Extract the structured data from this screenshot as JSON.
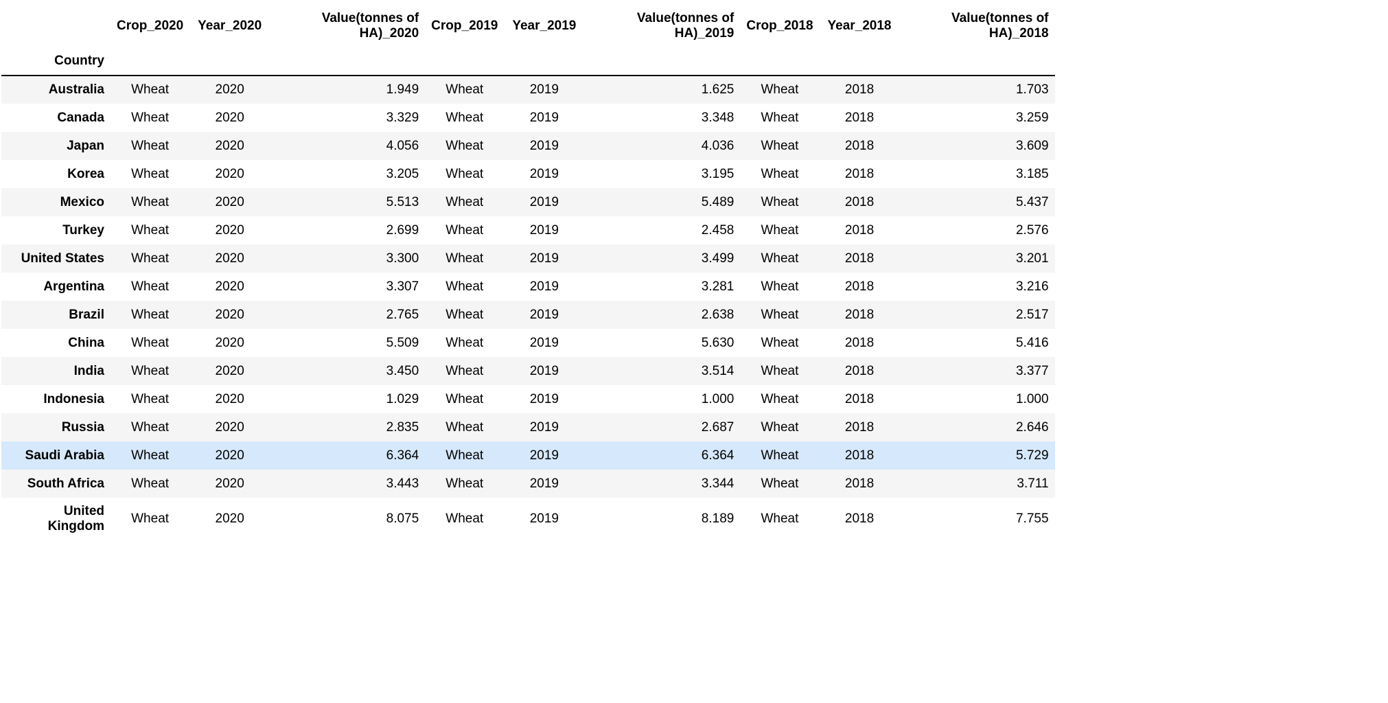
{
  "table": {
    "columns": [
      "Crop_2020",
      "Year_2020",
      "Value(tonnes of HA)_2020",
      "Crop_2019",
      "Year_2019",
      "Value(tonnes of HA)_2019",
      "Crop_2018",
      "Year_2018",
      "Value(tonnes of HA)_2018"
    ],
    "index_name": "Country",
    "hovered_row": "Saudi Arabia",
    "rows": [
      {
        "country": "Australia",
        "cells": [
          "Wheat",
          "2020",
          "1.949",
          "Wheat",
          "2019",
          "1.625",
          "Wheat",
          "2018",
          "1.703"
        ]
      },
      {
        "country": "Canada",
        "cells": [
          "Wheat",
          "2020",
          "3.329",
          "Wheat",
          "2019",
          "3.348",
          "Wheat",
          "2018",
          "3.259"
        ]
      },
      {
        "country": "Japan",
        "cells": [
          "Wheat",
          "2020",
          "4.056",
          "Wheat",
          "2019",
          "4.036",
          "Wheat",
          "2018",
          "3.609"
        ]
      },
      {
        "country": "Korea",
        "cells": [
          "Wheat",
          "2020",
          "3.205",
          "Wheat",
          "2019",
          "3.195",
          "Wheat",
          "2018",
          "3.185"
        ]
      },
      {
        "country": "Mexico",
        "cells": [
          "Wheat",
          "2020",
          "5.513",
          "Wheat",
          "2019",
          "5.489",
          "Wheat",
          "2018",
          "5.437"
        ]
      },
      {
        "country": "Turkey",
        "cells": [
          "Wheat",
          "2020",
          "2.699",
          "Wheat",
          "2019",
          "2.458",
          "Wheat",
          "2018",
          "2.576"
        ]
      },
      {
        "country": "United States",
        "cells": [
          "Wheat",
          "2020",
          "3.300",
          "Wheat",
          "2019",
          "3.499",
          "Wheat",
          "2018",
          "3.201"
        ]
      },
      {
        "country": "Argentina",
        "cells": [
          "Wheat",
          "2020",
          "3.307",
          "Wheat",
          "2019",
          "3.281",
          "Wheat",
          "2018",
          "3.216"
        ]
      },
      {
        "country": "Brazil",
        "cells": [
          "Wheat",
          "2020",
          "2.765",
          "Wheat",
          "2019",
          "2.638",
          "Wheat",
          "2018",
          "2.517"
        ]
      },
      {
        "country": "China",
        "cells": [
          "Wheat",
          "2020",
          "5.509",
          "Wheat",
          "2019",
          "5.630",
          "Wheat",
          "2018",
          "5.416"
        ]
      },
      {
        "country": "India",
        "cells": [
          "Wheat",
          "2020",
          "3.450",
          "Wheat",
          "2019",
          "3.514",
          "Wheat",
          "2018",
          "3.377"
        ]
      },
      {
        "country": "Indonesia",
        "cells": [
          "Wheat",
          "2020",
          "1.029",
          "Wheat",
          "2019",
          "1.000",
          "Wheat",
          "2018",
          "1.000"
        ]
      },
      {
        "country": "Russia",
        "cells": [
          "Wheat",
          "2020",
          "2.835",
          "Wheat",
          "2019",
          "2.687",
          "Wheat",
          "2018",
          "2.646"
        ]
      },
      {
        "country": "Saudi Arabia",
        "cells": [
          "Wheat",
          "2020",
          "6.364",
          "Wheat",
          "2019",
          "6.364",
          "Wheat",
          "2018",
          "5.729"
        ]
      },
      {
        "country": "South Africa",
        "cells": [
          "Wheat",
          "2020",
          "3.443",
          "Wheat",
          "2019",
          "3.344",
          "Wheat",
          "2018",
          "3.711"
        ]
      },
      {
        "country": "United Kingdom",
        "cells": [
          "Wheat",
          "2020",
          "8.075",
          "Wheat",
          "2019",
          "8.189",
          "Wheat",
          "2018",
          "7.755"
        ]
      }
    ]
  },
  "colors": {
    "stripe": "#f5f5f5",
    "hover": "#d6e8fb",
    "header_rule": "#000000"
  }
}
